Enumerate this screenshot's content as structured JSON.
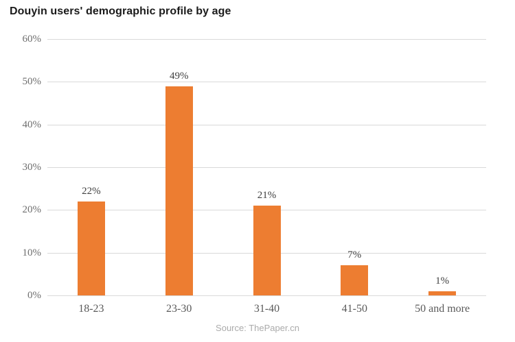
{
  "title": "Douyin users' demographic profile by age",
  "source": "Source: ThePaper.cn",
  "colors": {
    "bar": "#ed7d31",
    "gridline": "#d9d9d9",
    "ytick_label": "#6e6e6e",
    "data_label": "#404040",
    "category_label": "#595959",
    "title": "#1a1a1a",
    "source": "#ababab",
    "background": "#ffffff"
  },
  "chart_data": {
    "type": "bar",
    "title": "Douyin users' demographic profile by age",
    "categories": [
      "18-23",
      "23-30",
      "31-40",
      "41-50",
      "50 and more"
    ],
    "values": [
      22,
      49,
      21,
      7,
      1
    ],
    "data_labels": [
      "22%",
      "49%",
      "21%",
      "7%",
      "1%"
    ],
    "xlabel": "",
    "ylabel": "",
    "ylim": [
      0,
      60
    ],
    "ytick_interval": 10,
    "ytick_labels": [
      "0%",
      "10%",
      "20%",
      "30%",
      "40%",
      "50%",
      "60%"
    ],
    "grid": true,
    "legend_position": "none",
    "source_note": "Source: ThePaper.cn"
  }
}
